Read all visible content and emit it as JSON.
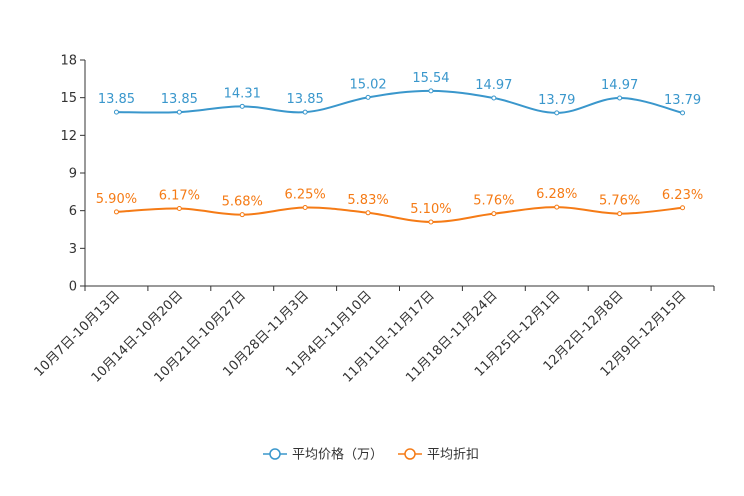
{
  "chart_data": {
    "type": "line",
    "title": "",
    "xlabel": "",
    "ylabel": "",
    "ylim": [
      0,
      18
    ],
    "yticks": [
      0,
      3,
      6,
      9,
      12,
      15,
      18
    ],
    "categories": [
      "10月7日-10月13日",
      "10月14日-10月20日",
      "10月21日-10月27日",
      "10月28日-11月3日",
      "11月4日-11月10日",
      "11月11日-11月17日",
      "11月18日-11月24日",
      "11月25日-12月1日",
      "12月2日-12月8日",
      "12月9日-12月15日"
    ],
    "series": [
      {
        "name": "平均价格（万）",
        "color": "#3a97cc",
        "values": [
          13.85,
          13.85,
          14.31,
          13.85,
          15.02,
          15.54,
          14.97,
          13.79,
          14.97,
          13.79
        ],
        "labels": [
          "13.85",
          "13.85",
          "14.31",
          "13.85",
          "15.02",
          "15.54",
          "14.97",
          "13.79",
          "14.97",
          "13.79"
        ]
      },
      {
        "name": "平均折扣",
        "color": "#f57b16",
        "values": [
          5.9,
          6.17,
          5.68,
          6.25,
          5.83,
          5.1,
          5.76,
          6.28,
          5.76,
          6.23
        ],
        "labels": [
          "5.90%",
          "6.17%",
          "5.68%",
          "6.25%",
          "5.83%",
          "5.10%",
          "5.76%",
          "6.28%",
          "5.76%",
          "6.23%"
        ]
      }
    ],
    "legend_position": "bottom"
  }
}
